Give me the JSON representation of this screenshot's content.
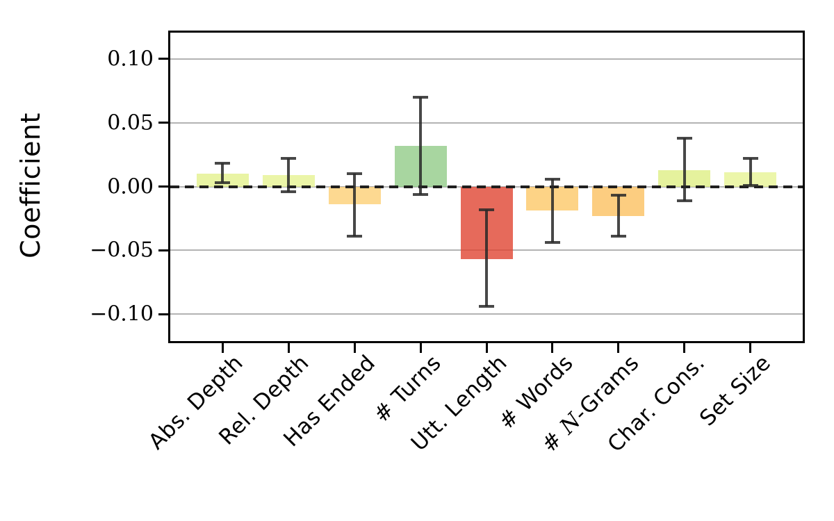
{
  "chart_data": {
    "type": "bar",
    "ylabel": "Coefficient",
    "xlabel": "",
    "categories": [
      "Abs. Depth",
      "Rel. Depth",
      "Has Ended",
      "# Turns",
      "Utt. Length",
      "# Words",
      "# N-Grams",
      "Char. Cons.",
      "Set Size"
    ],
    "values": [
      0.01,
      0.009,
      -0.014,
      0.032,
      -0.057,
      -0.019,
      -0.023,
      0.013,
      0.011
    ],
    "error_low": [
      0.003,
      -0.004,
      -0.039,
      -0.006,
      -0.094,
      -0.044,
      -0.039,
      -0.011,
      0.001
    ],
    "error_high": [
      0.018,
      0.022,
      0.01,
      0.07,
      -0.018,
      0.006,
      -0.007,
      0.038,
      0.022
    ],
    "bar_colors": [
      "#e3f18d",
      "#e6f392",
      "#fccf75",
      "#92cc88",
      "#e04532",
      "#fcc868",
      "#fbc060",
      "#dfef85",
      "#e7f495"
    ],
    "bar_alpha": 0.8,
    "yticks": [
      0.1,
      0.05,
      0.0,
      -0.05,
      -0.1
    ],
    "ytick_labels": [
      "0.10",
      "0.05",
      "0.00",
      "−0.05",
      "−0.10"
    ],
    "ylim": [
      -0.121,
      0.1205
    ],
    "grid": "horizontal",
    "zero_line": "dashed-black",
    "legend_position": "none",
    "italic_math_token": "N"
  },
  "style_colors": {
    "grid": "#b3b3b3",
    "axis": "#000000",
    "error_bar": "#3c3c3c",
    "zero_line": "#161616",
    "background": "#ffffff",
    "text": "#000000"
  }
}
